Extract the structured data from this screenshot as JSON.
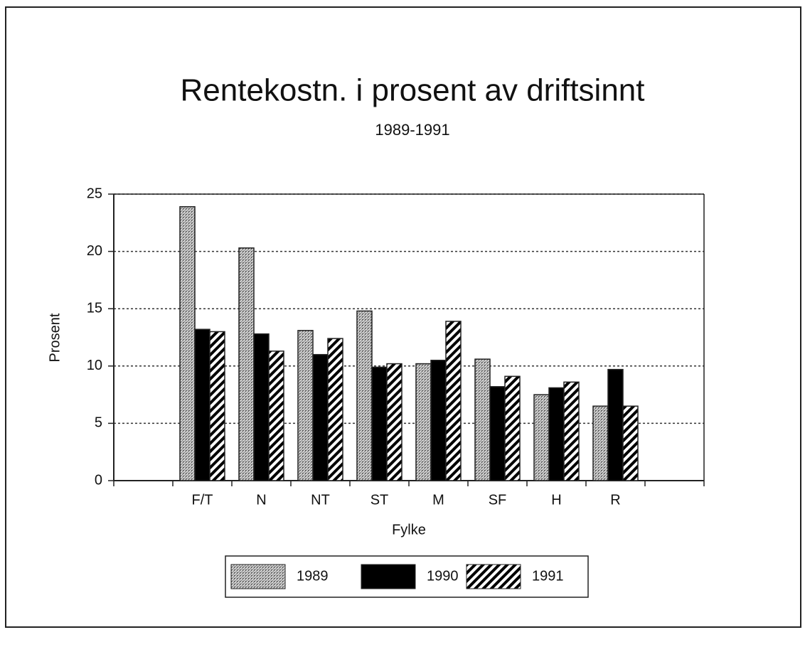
{
  "chart_data": {
    "type": "bar",
    "title": "Rentekostn. i prosent av driftsinnt",
    "subtitle": "1989-1991",
    "y_label": "Prosent",
    "x_label": "Fylke",
    "categories": [
      null,
      "F/T",
      "N",
      "NT",
      "ST",
      "M",
      "SF",
      "H",
      "R",
      null
    ],
    "series": [
      {
        "name": "1989",
        "color": "#8c8c8c",
        "pattern": "stipple",
        "values": [
          null,
          23.9,
          20.3,
          13.1,
          14.8,
          10.2,
          10.6,
          7.5,
          6.5,
          null
        ]
      },
      {
        "name": "1990",
        "color": "#000000",
        "pattern": "solid",
        "values": [
          null,
          13.2,
          12.8,
          11.0,
          9.9,
          10.5,
          8.2,
          8.1,
          9.7,
          null
        ]
      },
      {
        "name": "1991",
        "color": "#000000",
        "pattern": "stripes",
        "values": [
          null,
          13.0,
          11.3,
          12.4,
          10.2,
          13.9,
          9.1,
          8.6,
          6.5,
          null
        ]
      }
    ],
    "ylim": [
      0,
      25
    ],
    "yticks": [
      0,
      5,
      10,
      15,
      20,
      25
    ],
    "grid": true,
    "legend": "bottom"
  }
}
